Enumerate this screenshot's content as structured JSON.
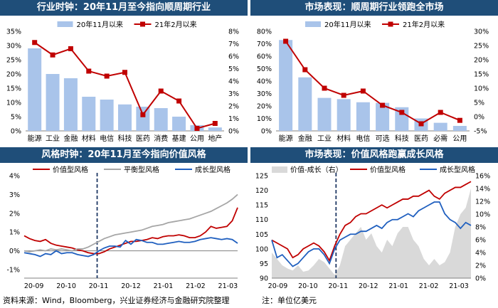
{
  "panels": {
    "p1": {
      "title": "行业时钟：20年11月至今指向顺周期行业"
    },
    "p2": {
      "title": "市场表现：顺周期行业领跑全市场"
    },
    "p3": {
      "title": "风格时钟：20年11月至今指向价值风格"
    },
    "p4": {
      "title": "市场表现：价值风格跑赢成长风格"
    }
  },
  "footer": {
    "source": "资料来源：Wind，Bloomberg，兴业证券经济与金融研究院整理",
    "unit": "注：单位亿美元"
  },
  "colors": {
    "bar": "#a9c4ea",
    "red": "#c00000",
    "blue": "#1f5fbf",
    "gray": "#a6a6a6",
    "area": "#d9d9d9",
    "title_bg": "#1f4e79"
  },
  "chart_data": [
    {
      "type": "bar",
      "categories": [
        "能源",
        "工业",
        "金融",
        "材料",
        "电信",
        "科技",
        "医药",
        "消费",
        "基建",
        "公用",
        "地产"
      ],
      "series": [
        {
          "name": "20年11月以来",
          "type": "bar",
          "axis": "left",
          "values": [
            29,
            20,
            18.5,
            12,
            11,
            9.3,
            8.5,
            8,
            5,
            2,
            1.2
          ]
        },
        {
          "name": "21年2月以来",
          "type": "line",
          "axis": "right",
          "values": [
            7.1,
            6.1,
            6.6,
            4.8,
            4.4,
            4.7,
            1.3,
            3.2,
            2.4,
            0.2,
            0.6
          ]
        }
      ],
      "yticks_left": [
        "0%",
        "5%",
        "10%",
        "15%",
        "20%",
        "25%",
        "30%",
        "35%"
      ],
      "yticks_right": [
        "0%",
        "1%",
        "2%",
        "3%",
        "4%",
        "5%",
        "6%",
        "7%",
        "8%"
      ],
      "ylim_left": [
        0,
        35
      ],
      "ylim_right": [
        0,
        8
      ],
      "legend": "top"
    },
    {
      "type": "bar",
      "categories": [
        "能源",
        "金融",
        "工业",
        "材料",
        "电信",
        "可选",
        "科技",
        "医药",
        "必需",
        "公用"
      ],
      "series": [
        {
          "name": "20年11月以来",
          "type": "bar",
          "axis": "left",
          "values": [
            73,
            43,
            26.5,
            25.5,
            23,
            22.5,
            19,
            10,
            6.5,
            4
          ]
        },
        {
          "name": "21年2月以来",
          "type": "line",
          "axis": "right",
          "values": [
            26.5,
            16.5,
            10,
            7.5,
            9,
            4,
            1.5,
            -2.5,
            1.5,
            -1.3
          ]
        }
      ],
      "yticks_left": [
        "0%",
        "10%",
        "20%",
        "30%",
        "40%",
        "50%",
        "60%",
        "70%",
        "80%"
      ],
      "yticks_right": [
        "-5%",
        "0%",
        "5%",
        "10%",
        "15%",
        "20%",
        "25%",
        "30%"
      ],
      "ylim_left": [
        0,
        80
      ],
      "ylim_right": [
        -5,
        30
      ],
      "legend": "top"
    },
    {
      "type": "line",
      "xticks": [
        "20-09",
        "20-10",
        "20-11",
        "20-12",
        "21-01",
        "21-02",
        "21-03"
      ],
      "yticks": [
        "-1%",
        "0%",
        "1%",
        "2%",
        "3%",
        "4%"
      ],
      "ylim": [
        -1,
        4
      ],
      "marker_line": "20-11",
      "legend": "top",
      "series": [
        {
          "name": "价值型风格",
          "values": [
            0.8,
            0.65,
            0.55,
            0.5,
            0.6,
            0.4,
            0.3,
            0.25,
            0.2,
            0.15,
            0.05,
            0.0,
            -0.1,
            -0.15,
            -0.15,
            -0.05,
            0.1,
            0.2,
            0.3,
            0.4,
            0.5,
            0.5,
            0.55,
            0.6,
            0.7,
            0.65,
            0.75,
            0.8,
            0.8,
            0.85,
            0.8,
            0.7,
            0.7,
            0.8,
            1.0,
            1.3,
            1.2,
            1.25,
            1.3,
            1.6,
            2.3
          ]
        },
        {
          "name": "平衡型风格",
          "values": [
            0.0,
            -0.05,
            0.0,
            0.05,
            0.0,
            0.1,
            0.05,
            0.1,
            0.05,
            0.0,
            0.1,
            0.1,
            0.2,
            0.35,
            0.5,
            0.65,
            0.75,
            0.85,
            0.9,
            0.95,
            1.0,
            1.05,
            1.1,
            1.2,
            1.3,
            1.35,
            1.4,
            1.5,
            1.55,
            1.6,
            1.65,
            1.7,
            1.8,
            1.9,
            2.0,
            2.1,
            2.25,
            2.4,
            2.55,
            2.75,
            3.0
          ]
        },
        {
          "name": "成长型风格",
          "values": [
            -0.1,
            -0.15,
            -0.2,
            -0.3,
            -0.15,
            -0.2,
            0.0,
            -0.15,
            -0.1,
            -0.1,
            -0.2,
            -0.25,
            -0.3,
            -0.2,
            0.0,
            0.15,
            0.25,
            0.25,
            0.2,
            0.55,
            0.35,
            0.6,
            0.55,
            0.45,
            0.45,
            0.35,
            0.35,
            0.4,
            0.45,
            0.5,
            0.45,
            0.45,
            0.5,
            0.6,
            0.65,
            0.7,
            0.65,
            0.6,
            0.65,
            0.6,
            0.4
          ]
        }
      ]
    },
    {
      "type": "line",
      "xticks": [
        "20-09",
        "20-10",
        "20-11",
        "20-12",
        "21-01",
        "21-02",
        "21-03"
      ],
      "yticks_left": [
        "90",
        "95",
        "100",
        "105",
        "110",
        "115",
        "120",
        "125"
      ],
      "yticks_right": [
        "0%",
        "2%",
        "4%",
        "6%",
        "8%",
        "10%",
        "12%",
        "14%",
        "16%"
      ],
      "ylim_left": [
        90,
        125
      ],
      "ylim_right": [
        0,
        16
      ],
      "marker_line": "20-11",
      "legend": "top",
      "series": [
        {
          "name": "价值-成长（右）",
          "type": "area",
          "axis": "right",
          "values": [
            4,
            3,
            2,
            1.5,
            1.2,
            2,
            1,
            1.2,
            2,
            3,
            2.5,
            1.5,
            0.5,
            2,
            5,
            6,
            7,
            8,
            6,
            7,
            5,
            4,
            6,
            5,
            7,
            8,
            8,
            6,
            5,
            3,
            2,
            3,
            2,
            2.5,
            4,
            8,
            10,
            11,
            14
          ]
        },
        {
          "name": "价值型风格",
          "type": "line",
          "axis": "left",
          "values": [
            103,
            102,
            101,
            100,
            97,
            98,
            100,
            101,
            102,
            101,
            99,
            96,
            101,
            105,
            108,
            109,
            111,
            112,
            112,
            113,
            114,
            115,
            114,
            115,
            116,
            117,
            117,
            118,
            118,
            119,
            120,
            118,
            117,
            119,
            120,
            121,
            121,
            122,
            123
          ]
        },
        {
          "name": "成长型风格",
          "type": "line",
          "axis": "left",
          "values": [
            103,
            97,
            98,
            96,
            94,
            95,
            97,
            99,
            100,
            100,
            98,
            95,
            100,
            103,
            104,
            105,
            105,
            106,
            106,
            107,
            108,
            107,
            109,
            110,
            110,
            111,
            112,
            111,
            113,
            114,
            115,
            116,
            116,
            112,
            110,
            109,
            107,
            109,
            108
          ]
        }
      ]
    }
  ]
}
